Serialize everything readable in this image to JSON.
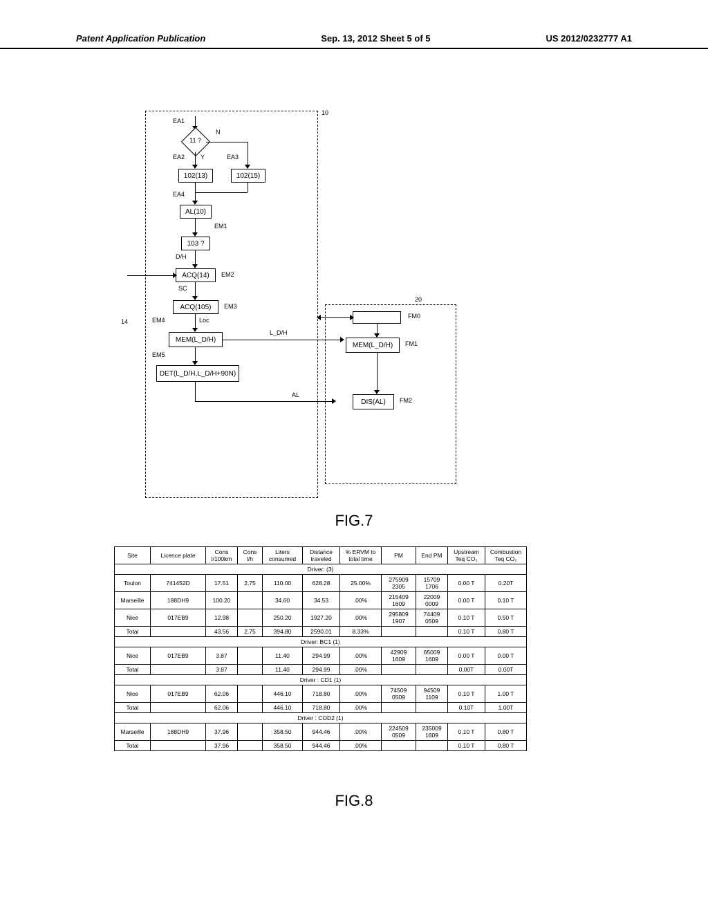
{
  "header": {
    "left": "Patent Application Publication",
    "center": "Sep. 13, 2012  Sheet 5 of 5",
    "right": "US 2012/0232777 A1"
  },
  "fig7": {
    "caption": "FIG.7",
    "ref_10": "10",
    "ref_14": "14",
    "ref_20": "20",
    "ea1": "EA1",
    "ea2": "EA2",
    "ea3": "EA3",
    "ea4": "EA4",
    "em1": "EM1",
    "em2": "EM2",
    "em3": "EM3",
    "em4": "EM4",
    "em5": "EM5",
    "fm0": "FM0",
    "fm1": "FM1",
    "fm2": "FM2",
    "n": "N",
    "y": "Y",
    "dh": "D/H",
    "sc": "SC",
    "loc": "Loc",
    "ldh": "L_D/H",
    "al": "AL",
    "diamond_11": "11 ?",
    "box_102_13": "102(13)",
    "box_102_15": "102(15)",
    "box_al10": "AL(10)",
    "box_103": "103 ?",
    "box_acq14": "ACQ(14)",
    "box_acq105": "ACQ(105)",
    "box_mem_ldh": "MEM(L_D/H)",
    "box_det": "DET(L_D/H,L_D/H+90N)",
    "box_mem_ldh_2": "MEM(L_D/H)",
    "box_dis_al": "DIS(AL)"
  },
  "fig8": {
    "caption": "FIG.8",
    "columns": [
      "Site",
      "Licence plate",
      "Cons\nl/100km",
      "Cons\nl/h",
      "Liters\nconsumed",
      "Distance\ntraveled",
      "% ERVM to\ntotal time",
      "PM",
      "End PM",
      "Upstream\nTeq CO₂",
      "Combustion\nTeq CO₂"
    ],
    "sections": [
      {
        "driver": "Driver: (3)",
        "rows": [
          {
            "site": "Toulon",
            "plate": "741452D",
            "c100": "17.51",
            "ch": "2.75",
            "lit": "110.00",
            "dist": "628.28",
            "ervm": "25.00%",
            "pm": "275909\n2305",
            "epm": "15709\n1706",
            "up": "0.00 T",
            "comb": "0.20T"
          },
          {
            "site": "Marseille",
            "plate": "188DH9",
            "c100": "100.20",
            "ch": "",
            "lit": "34.60",
            "dist": "34.53",
            "ervm": ".00%",
            "pm": "215409\n1609",
            "epm": "22009\n0009",
            "up": "0.00 T",
            "comb": "0.10 T"
          },
          {
            "site": "Nice",
            "plate": "017EB9",
            "c100": "12.98",
            "ch": "",
            "lit": "250.20",
            "dist": "1927.20",
            "ervm": ".00%",
            "pm": "295809\n1907",
            "epm": "74409\n0509",
            "up": "0.10 T",
            "comb": "0.50 T"
          },
          {
            "site": "Total",
            "plate": "",
            "c100": "43.56",
            "ch": "2.75",
            "lit": "394.80",
            "dist": "2590.01",
            "ervm": "8.33%",
            "pm": "",
            "epm": "",
            "up": "0.10 T",
            "comb": "0.80 T"
          }
        ]
      },
      {
        "driver": "Driver: BC1 (1)",
        "rows": [
          {
            "site": "Nice",
            "plate": "017EB9",
            "c100": "3.87",
            "ch": "",
            "lit": "11.40",
            "dist": "294.99",
            "ervm": ".00%",
            "pm": "42909\n1609",
            "epm": "65009\n1609",
            "up": "0.00 T",
            "comb": "0.00 T"
          },
          {
            "site": "Total",
            "plate": "",
            "c100": "3.87",
            "ch": "",
            "lit": "11.40",
            "dist": "294.99",
            "ervm": ".00%",
            "pm": "",
            "epm": "",
            "up": "0.00T",
            "comb": "0.00T"
          }
        ]
      },
      {
        "driver": "Driver : CD1 (1)",
        "rows": [
          {
            "site": "Nice",
            "plate": "017EB9",
            "c100": "62.06",
            "ch": "",
            "lit": "446.10",
            "dist": "718.80",
            "ervm": ".00%",
            "pm": "74509\n0509",
            "epm": "94509\n1109",
            "up": "0.10 T",
            "comb": "1.00 T"
          },
          {
            "site": "Total",
            "plate": "",
            "c100": "62.06",
            "ch": "",
            "lit": "446.10",
            "dist": "718.80",
            "ervm": ".00%",
            "pm": "",
            "epm": "",
            "up": "0.10T",
            "comb": "1.00T"
          }
        ]
      },
      {
        "driver": "Driver : COD2 (1)",
        "rows": [
          {
            "site": "Marseille",
            "plate": "188DH9",
            "c100": "37.96",
            "ch": "",
            "lit": "358.50",
            "dist": "944.46",
            "ervm": ".00%",
            "pm": "224509\n0509",
            "epm": "235009\n1609",
            "up": "0.10 T",
            "comb": "0.80 T"
          },
          {
            "site": "Total",
            "plate": "",
            "c100": "37.96",
            "ch": "",
            "lit": "358.50",
            "dist": "944.46",
            "ervm": ".00%",
            "pm": "",
            "epm": "",
            "up": "0.10 T",
            "comb": "0.80 T"
          }
        ]
      }
    ]
  }
}
